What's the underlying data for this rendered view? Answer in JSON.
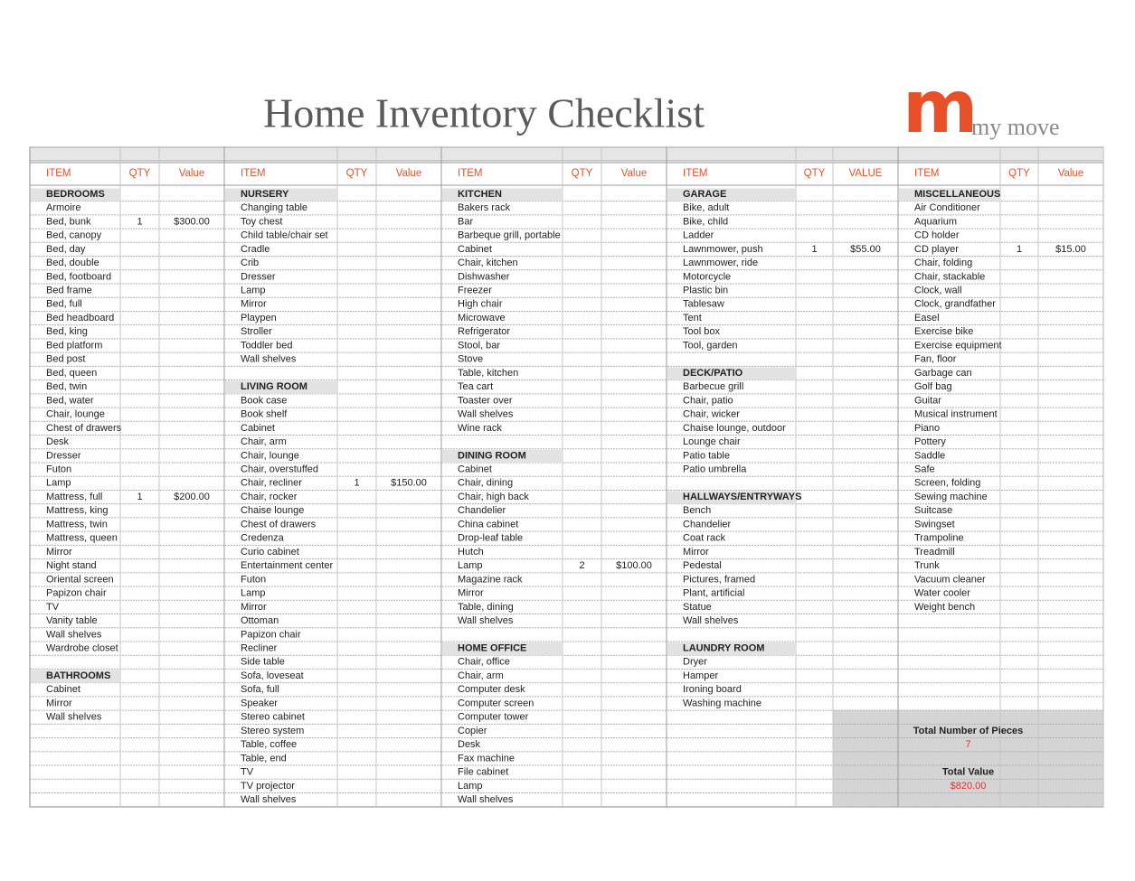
{
  "title": "Home Inventory Checklist",
  "logo": {
    "mark": "m",
    "text": "my move"
  },
  "sections": [
    {
      "headers": [
        "ITEM",
        "QTY",
        "Value"
      ],
      "groups": [
        {
          "heading": "BEDROOMS",
          "items": [
            "Armoire",
            {
              "name": "Bed, bunk",
              "qty": 1,
              "value": "$300.00"
            },
            "Bed, canopy",
            "Bed, day",
            "Bed, double",
            "Bed, footboard",
            "Bed frame",
            "Bed, full",
            "Bed headboard",
            "Bed, king",
            "Bed platform",
            "Bed post",
            "Bed, queen",
            "Bed, twin",
            "Bed, water",
            "Chair, lounge",
            "Chest of drawers",
            "Desk",
            "Dresser",
            "Futon",
            "Lamp",
            {
              "name": "Mattress, full",
              "qty": 1,
              "value": "$200.00"
            },
            "Mattress, king",
            "Mattress, twin",
            "Mattress, queen",
            "Mirror",
            "Night stand",
            "Oriental screen",
            "Papizon chair",
            "TV",
            "Vanity table",
            "Wall shelves",
            "Wardrobe closet"
          ]
        },
        {
          "heading": "BATHROOMS",
          "items": [
            "Cabinet",
            "Mirror",
            "Wall shelves"
          ]
        }
      ]
    },
    {
      "headers": [
        "ITEM",
        "QTY",
        "Value"
      ],
      "groups": [
        {
          "heading": "NURSERY",
          "items": [
            "Changing table",
            "Toy chest",
            "Child table/chair set",
            "Cradle",
            "Crib",
            "Dresser",
            "Lamp",
            "Mirror",
            "Playpen",
            "Stroller",
            "Toddler bed",
            "Wall shelves"
          ]
        },
        {
          "heading": "LIVING ROOM",
          "items": [
            "Book case",
            "Book shelf",
            "Cabinet",
            "Chair, arm",
            "Chair, lounge",
            "Chair, overstuffed",
            {
              "name": "Chair, recliner",
              "qty": 1,
              "value": "$150.00"
            },
            "Chair, rocker",
            "Chaise lounge",
            "Chest of drawers",
            "Credenza",
            "Curio cabinet",
            "Entertainment center",
            "Futon",
            "Lamp",
            "Mirror",
            "Ottoman",
            "Papizon chair",
            "Recliner",
            "Side table",
            "Sofa, loveseat",
            "Sofa, full",
            "Speaker",
            "Stereo cabinet",
            "Stereo system",
            "Table, coffee",
            "Table, end",
            "TV",
            "TV projector",
            "Wall shelves"
          ]
        }
      ]
    },
    {
      "headers": [
        "ITEM",
        "QTY",
        "Value"
      ],
      "groups": [
        {
          "heading": "KITCHEN",
          "items": [
            "Bakers rack",
            "Bar",
            "Barbeque grill, portable",
            "Cabinet",
            "Chair, kitchen",
            "Dishwasher",
            "Freezer",
            "High chair",
            "Microwave",
            "Refrigerator",
            "Stool, bar",
            "Stove",
            "Table, kitchen",
            "Tea cart",
            "Toaster over",
            "Wall shelves",
            "Wine rack"
          ]
        },
        {
          "heading": "DINING ROOM",
          "items": [
            "Cabinet",
            "Chair, dining",
            "Chair, high back",
            "Chandelier",
            "China cabinet",
            "Drop-leaf table",
            "Hutch",
            {
              "name": "Lamp",
              "qty": 2,
              "value": "$100.00"
            },
            "Magazine rack",
            "Mirror",
            "Table, dining",
            "Wall shelves"
          ]
        },
        {
          "heading": "HOME OFFICE",
          "items": [
            "Chair, office",
            "Chair, arm",
            "Computer desk",
            "Computer screen",
            "Computer tower",
            "Copier",
            "Desk",
            "Fax machine",
            "File cabinet",
            "Lamp",
            "Wall shelves"
          ]
        }
      ]
    },
    {
      "headers": [
        "ITEM",
        "QTY",
        "VALUE"
      ],
      "groups": [
        {
          "heading": "GARAGE",
          "items": [
            "Bike, adult",
            "Bike, child",
            "Ladder",
            {
              "name": "Lawnmower, push",
              "qty": 1,
              "value": "$55.00"
            },
            "Lawnmower, ride",
            "Motorcycle",
            "Plastic bin",
            "Tablesaw",
            "Tent",
            "Tool box",
            "Tool, garden"
          ]
        },
        {
          "heading": "DECK/PATIO",
          "items": [
            "Barbecue grill",
            "Chair, patio",
            "Chair, wicker",
            "Chaise lounge, outdoor",
            "Lounge chair",
            "Patio table",
            "Patio umbrella"
          ]
        },
        {
          "heading": "HALLWAYS/ENTRYWAYS",
          "items": [
            "Bench",
            "Chandelier",
            "Coat rack",
            "Mirror",
            "Pedestal",
            "Pictures, framed",
            "Plant, artificial",
            "Statue",
            "Wall shelves"
          ]
        },
        {
          "heading": "LAUNDRY ROOM",
          "items": [
            "Dryer",
            "Hamper",
            "Ironing board",
            "Washing machine"
          ]
        }
      ]
    },
    {
      "headers": [
        "ITEM",
        "QTY",
        "Value"
      ],
      "groups": [
        {
          "heading": "MISCELLANEOUS",
          "items": [
            "Air Conditioner",
            "Aquarium",
            "CD holder",
            {
              "name": "CD player",
              "qty": 1,
              "value": "$15.00"
            },
            "Chair, folding",
            "Chair, stackable",
            "Clock, wall",
            "Clock, grandfather",
            "Easel",
            "Exercise bike",
            "Exercise equipment",
            "Fan, floor",
            "Garbage can",
            "Golf bag",
            "Guitar",
            "Musical instrument",
            "Piano",
            "Pottery",
            "Saddle",
            "Safe",
            "Screen, folding",
            "Sewing machine",
            "Suitcase",
            "Swingset",
            "Trampoline",
            "Treadmill",
            "Trunk",
            "Vacuum cleaner",
            "Water cooler",
            "Weight bench"
          ]
        }
      ]
    }
  ],
  "totals": {
    "pieces_label": "Total Number of Pieces",
    "pieces": 7,
    "value_label": "Total Value",
    "value": "$820.00"
  }
}
